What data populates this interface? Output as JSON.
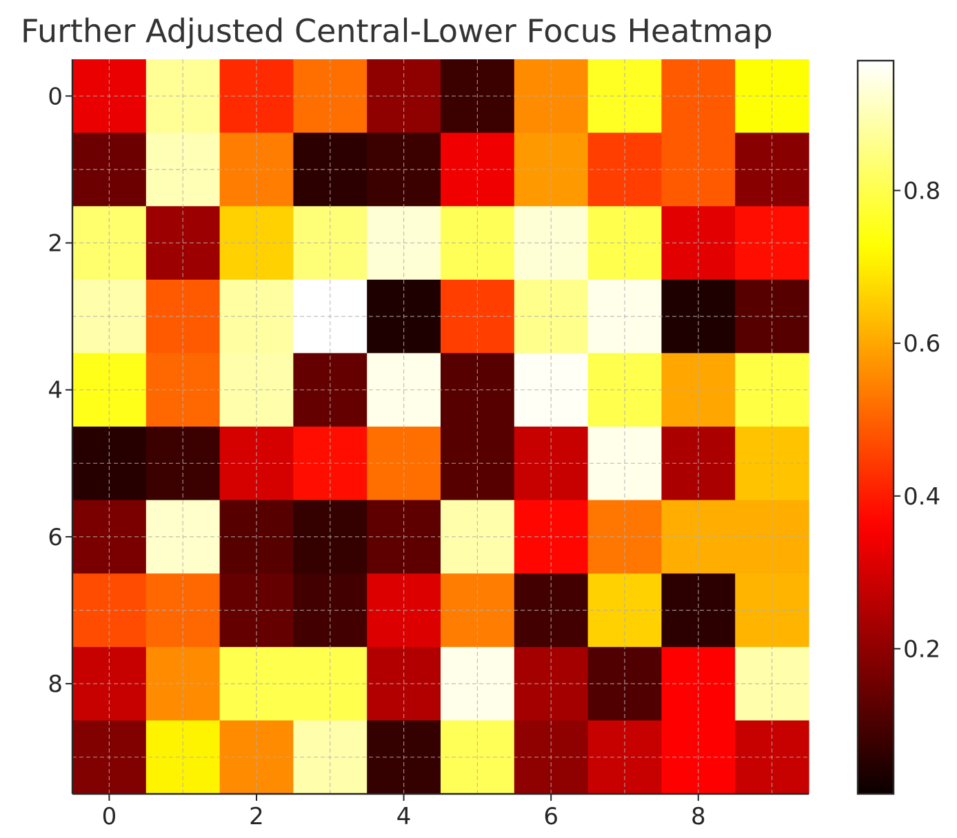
{
  "chart_data": {
    "type": "heatmap",
    "title": "Further Adjusted Central-Lower Focus Heatmap",
    "colormap": "hot",
    "grid": true,
    "x_ticks": [
      "0",
      "2",
      "4",
      "6",
      "8"
    ],
    "y_ticks": [
      "0",
      "2",
      "4",
      "6",
      "8"
    ],
    "colorbar": {
      "range": [
        0.01,
        0.97
      ],
      "ticks": [
        "0.2",
        "0.4",
        "0.6",
        "0.8"
      ],
      "tick_values": [
        0.2,
        0.4,
        0.6,
        0.8
      ]
    },
    "rows": 10,
    "cols": 10,
    "values": [
      [
        0.33,
        0.87,
        0.42,
        0.52,
        0.2,
        0.08,
        0.56,
        0.76,
        0.49,
        0.73
      ],
      [
        0.15,
        0.9,
        0.54,
        0.06,
        0.08,
        0.34,
        0.58,
        0.45,
        0.49,
        0.19
      ],
      [
        0.83,
        0.22,
        0.66,
        0.84,
        0.93,
        0.81,
        0.93,
        0.8,
        0.32,
        0.38
      ],
      [
        0.89,
        0.49,
        0.88,
        0.97,
        0.04,
        0.45,
        0.86,
        0.95,
        0.04,
        0.12
      ],
      [
        0.75,
        0.51,
        0.89,
        0.14,
        0.95,
        0.12,
        0.96,
        0.8,
        0.6,
        0.79
      ],
      [
        0.05,
        0.08,
        0.3,
        0.38,
        0.52,
        0.12,
        0.28,
        0.95,
        0.24,
        0.64
      ],
      [
        0.17,
        0.92,
        0.12,
        0.07,
        0.13,
        0.89,
        0.37,
        0.53,
        0.61,
        0.61
      ],
      [
        0.47,
        0.51,
        0.14,
        0.09,
        0.31,
        0.54,
        0.09,
        0.66,
        0.06,
        0.62
      ],
      [
        0.28,
        0.56,
        0.8,
        0.8,
        0.25,
        0.95,
        0.23,
        0.11,
        0.36,
        0.89
      ],
      [
        0.18,
        0.71,
        0.56,
        0.89,
        0.07,
        0.81,
        0.2,
        0.28,
        0.36,
        0.28
      ]
    ]
  }
}
